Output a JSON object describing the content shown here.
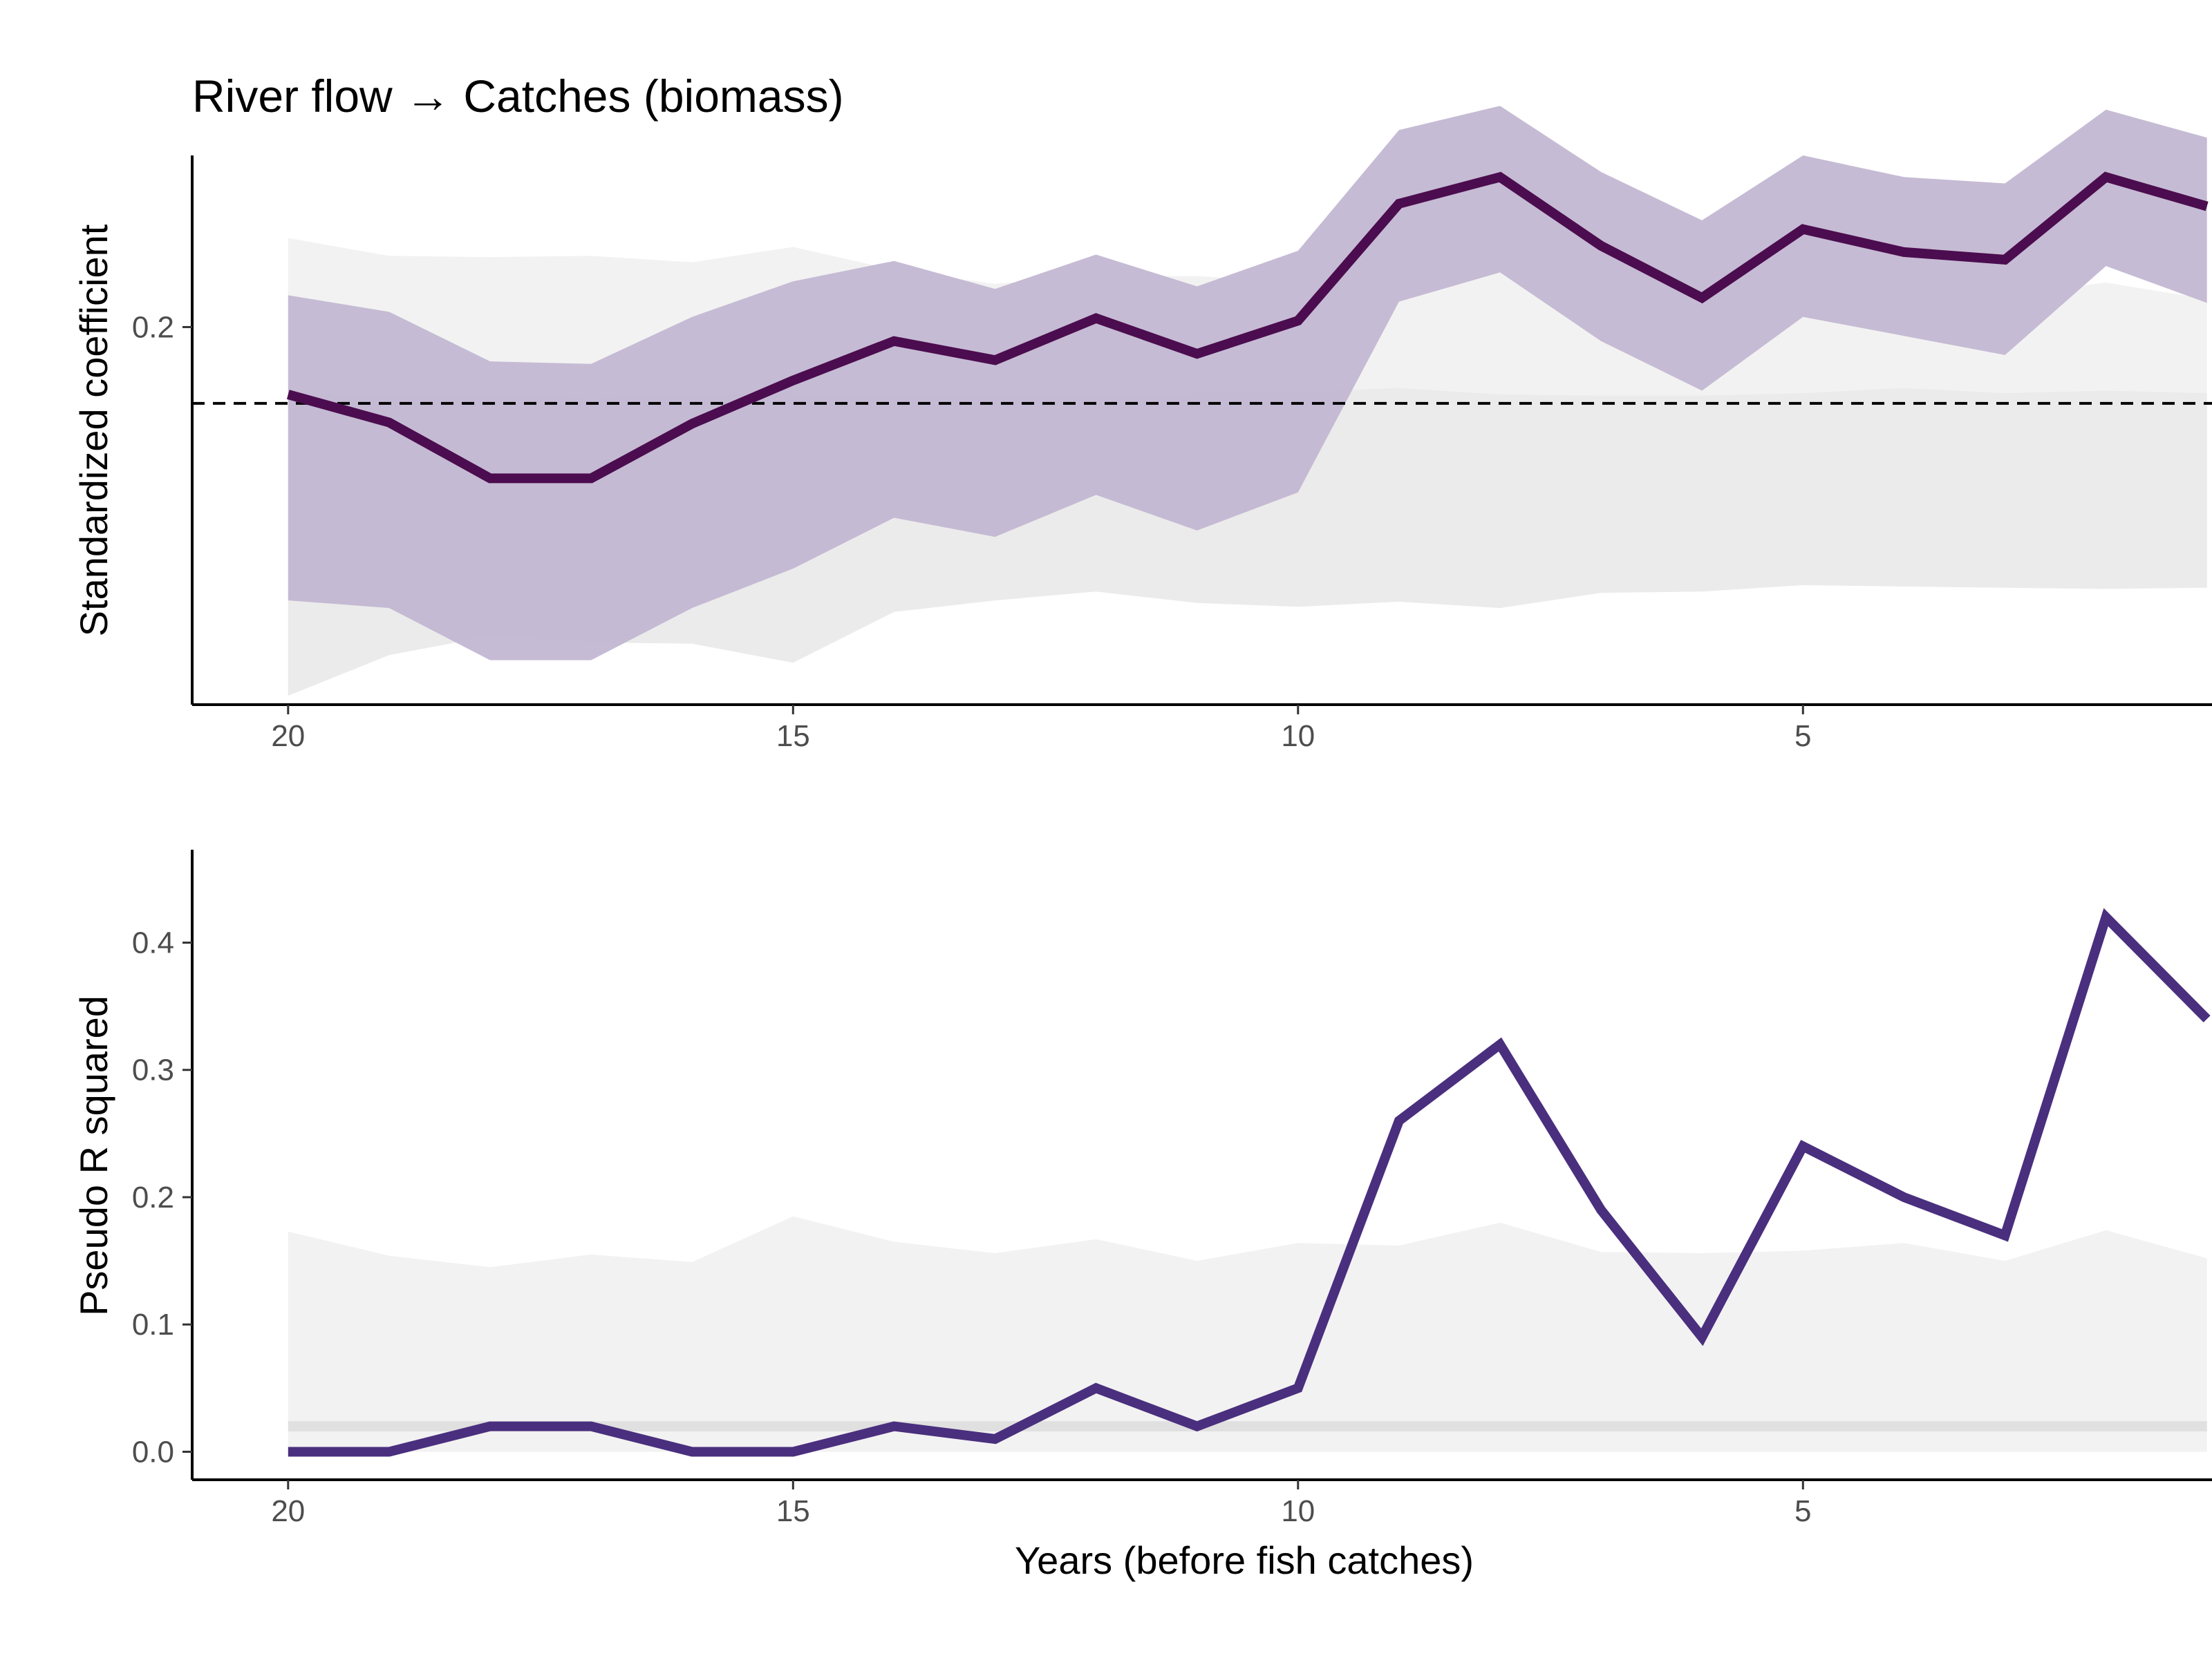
{
  "chart_data": [
    {
      "type": "line",
      "title": "River flow → Catches (biomass)",
      "xlabel": "",
      "ylabel": "Standardized coefficient",
      "x": [
        20,
        19,
        18,
        17,
        16,
        15,
        14,
        13,
        12,
        11,
        10,
        9,
        8,
        7,
        6,
        5,
        4,
        3,
        2,
        1
      ],
      "xlim": [
        20.95,
        0.95
      ],
      "x_reversed": true,
      "xticks": [
        20,
        15,
        10,
        5
      ],
      "ylim": [
        -0.097,
        0.335
      ],
      "yticks": [
        0.2
      ],
      "reference_line": {
        "y": 0.14,
        "style": "dashed"
      },
      "series": [
        {
          "values": [
            0.147,
            0.125,
            0.081,
            0.081,
            0.124,
            0.158,
            0.189,
            0.174,
            0.207,
            0.179,
            0.205,
            0.297,
            0.318,
            0.264,
            0.223,
            0.277,
            0.259,
            0.253,
            0.318,
            0.295
          ],
          "band_lower": [
            -0.015,
            -0.021,
            -0.062,
            -0.062,
            -0.021,
            0.01,
            0.05,
            0.035,
            0.068,
            0.04,
            0.07,
            0.22,
            0.243,
            0.189,
            0.15,
            0.208,
            0.193,
            0.178,
            0.248,
            0.219
          ],
          "band_upper": [
            0.225,
            0.212,
            0.173,
            0.171,
            0.208,
            0.236,
            0.252,
            0.23,
            0.257,
            0.232,
            0.26,
            0.355,
            0.374,
            0.322,
            0.284,
            0.335,
            0.318,
            0.313,
            0.371,
            0.349
          ],
          "color": "#4b0d4f",
          "band_color": "#c3b7d2"
        }
      ],
      "null_band": {
        "upper": [
          0.27,
          0.256,
          0.255,
          0.256,
          0.251,
          0.263,
          0.245,
          0.234,
          0.24,
          0.24,
          0.236,
          0.238,
          0.246,
          0.233,
          0.223,
          0.232,
          0.227,
          0.225,
          0.235,
          0.222
        ],
        "lower": [
          -0.09,
          -0.058,
          -0.043,
          -0.048,
          -0.049,
          -0.064,
          -0.024,
          -0.015,
          -0.008,
          -0.017,
          -0.02,
          -0.016,
          -0.021,
          -0.009,
          -0.008,
          -0.003,
          -0.004,
          -0.005,
          -0.006,
          -0.005
        ],
        "inner_upper": [
          0.149,
          0.145,
          0.147,
          0.144,
          0.147,
          0.148,
          0.146,
          0.145,
          0.146,
          0.148,
          0.149,
          0.152,
          0.147,
          0.146,
          0.146,
          0.148,
          0.152,
          0.148,
          0.15,
          0.148
        ],
        "color": "#f2f2f2"
      }
    },
    {
      "type": "line",
      "title": "",
      "xlabel": "Years (before fish catches)",
      "ylabel": "Pseudo R squared",
      "x": [
        20,
        19,
        18,
        17,
        16,
        15,
        14,
        13,
        12,
        11,
        10,
        9,
        8,
        7,
        6,
        5,
        4,
        3,
        2,
        1
      ],
      "xlim": [
        20.95,
        0.95
      ],
      "x_reversed": true,
      "xticks": [
        20,
        15,
        10,
        5
      ],
      "ylim": [
        -0.022,
        0.473
      ],
      "yticks": [
        0.0,
        0.1,
        0.2,
        0.3,
        0.4
      ],
      "ytick_labels": [
        "0.0",
        "0.1",
        "0.2",
        "0.3",
        "0.4"
      ],
      "series": [
        {
          "values": [
            0.0,
            0.0,
            0.02,
            0.02,
            0.0,
            0.0,
            0.02,
            0.01,
            0.05,
            0.02,
            0.05,
            0.26,
            0.32,
            0.19,
            0.09,
            0.24,
            0.2,
            0.17,
            0.42,
            0.34
          ],
          "color": "#4a2f7e"
        }
      ],
      "null_band": {
        "upper": [
          0.173,
          0.154,
          0.145,
          0.155,
          0.149,
          0.185,
          0.165,
          0.156,
          0.167,
          0.15,
          0.164,
          0.162,
          0.18,
          0.157,
          0.156,
          0.158,
          0.164,
          0.15,
          0.174,
          0.152
        ],
        "lower": [
          0.0,
          0.0,
          0.0,
          0.0,
          0.0,
          0.0,
          0.0,
          0.0,
          0.0,
          0.0,
          0.0,
          0.0,
          0.0,
          0.0,
          0.0,
          0.0,
          0.0,
          0.0,
          0.0,
          0.0
        ],
        "median_upper": [
          0.024,
          0.024,
          0.024,
          0.024,
          0.024,
          0.024,
          0.024,
          0.024,
          0.024,
          0.024,
          0.024,
          0.024,
          0.024,
          0.024,
          0.024,
          0.024,
          0.024,
          0.024,
          0.024,
          0.024
        ],
        "median_lower": [
          0.016,
          0.016,
          0.016,
          0.016,
          0.016,
          0.016,
          0.016,
          0.016,
          0.016,
          0.016,
          0.016,
          0.016,
          0.016,
          0.016,
          0.016,
          0.016,
          0.016,
          0.016,
          0.016,
          0.016
        ],
        "color": "#f2f2f2",
        "median_color": "#e0e0e0"
      }
    }
  ]
}
